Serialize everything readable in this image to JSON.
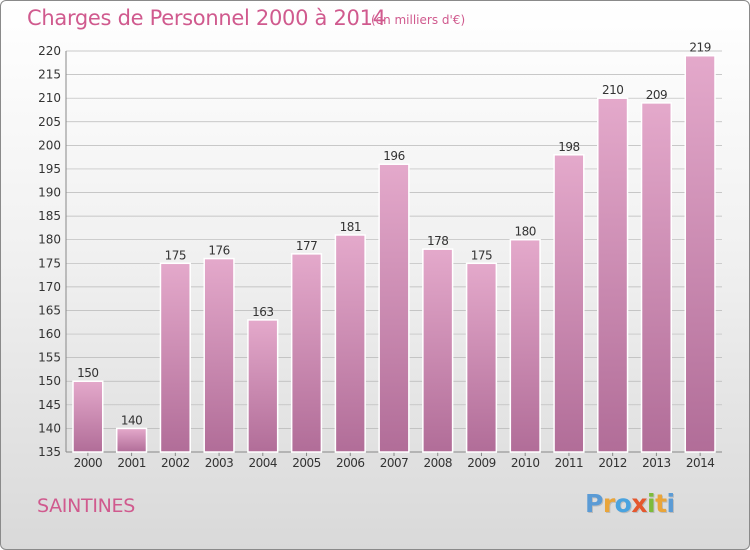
{
  "header": {
    "title": "Charges de Personnel 2000 à 2014",
    "subtitle": "(en milliers d'€)"
  },
  "footer": {
    "city": "SAINTINES",
    "logo_letters": [
      "P",
      "r",
      "o",
      "x",
      "i",
      "t",
      "i"
    ],
    "logo_colors": [
      "#5b9bd5",
      "#e9a53a",
      "#4aa3df",
      "#e4572e",
      "#7dbb3c",
      "#e9a53a",
      "#5b9bd5"
    ]
  },
  "colors": {
    "bar_top": "#e4a9cb",
    "bar_bottom": "#b16d98",
    "bar_stroke": "#ffffff",
    "text": "#333333",
    "title": "#d05a8e"
  },
  "chart_data": {
    "type": "bar",
    "categories": [
      "2000",
      "2001",
      "2002",
      "2003",
      "2004",
      "2005",
      "2006",
      "2007",
      "2008",
      "2009",
      "2010",
      "2011",
      "2012",
      "2013",
      "2014"
    ],
    "values": [
      150,
      140,
      175,
      176,
      163,
      177,
      181,
      196,
      178,
      175,
      180,
      198,
      210,
      209,
      219
    ],
    "ylim": [
      135,
      220
    ],
    "yticks": [
      135,
      140,
      145,
      150,
      155,
      160,
      165,
      170,
      175,
      180,
      185,
      190,
      195,
      200,
      205,
      210,
      215,
      220
    ],
    "grid": true,
    "legend": "none"
  }
}
